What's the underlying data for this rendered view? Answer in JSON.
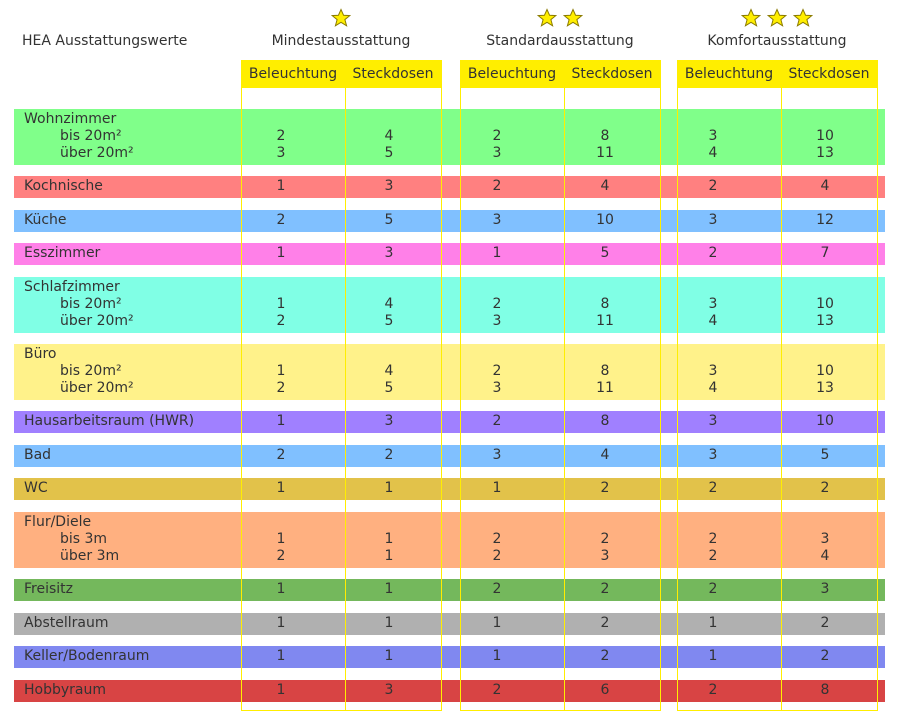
{
  "title": "HEA Ausstattungswerte",
  "tiers": [
    {
      "name": "Mindestausstattung",
      "stars": 1
    },
    {
      "name": "Standardausstattung",
      "stars": 2
    },
    {
      "name": "Komfortausstattung",
      "stars": 3
    }
  ],
  "subheaders": [
    "Beleuchtung",
    "Steckdosen"
  ],
  "colors": {
    "header_yellow": "#ffee00",
    "star_fill": "#ffee00"
  },
  "rows": [
    {
      "label": "Wohnzimmer",
      "color": "#80ff8a",
      "subrows": [
        {
          "label": "bis 20m²",
          "values": [
            "2",
            "4",
            "2",
            "8",
            "3",
            "10"
          ]
        },
        {
          "label": "über 20m²",
          "values": [
            "3",
            "5",
            "3",
            "11",
            "4",
            "13"
          ]
        }
      ]
    },
    {
      "label": "Kochnische",
      "color": "#ff8080",
      "values": [
        "1",
        "3",
        "2",
        "4",
        "2",
        "4"
      ]
    },
    {
      "label": "Küche",
      "color": "#80c0ff",
      "values": [
        "2",
        "5",
        "3",
        "10",
        "3",
        "12"
      ]
    },
    {
      "label": "Esszimmer",
      "color": "#ff80e8",
      "values": [
        "1",
        "3",
        "1",
        "5",
        "2",
        "7"
      ]
    },
    {
      "label": "Schlafzimmer",
      "color": "#80ffe5",
      "subrows": [
        {
          "label": "bis 20m²",
          "values": [
            "1",
            "4",
            "2",
            "8",
            "3",
            "10"
          ]
        },
        {
          "label": "über 20m²",
          "values": [
            "2",
            "5",
            "3",
            "11",
            "4",
            "13"
          ]
        }
      ]
    },
    {
      "label": "Büro",
      "color": "#fff28a",
      "subrows": [
        {
          "label": "bis 20m²",
          "values": [
            "1",
            "4",
            "2",
            "8",
            "3",
            "10"
          ]
        },
        {
          "label": "über 20m²",
          "values": [
            "2",
            "5",
            "3",
            "11",
            "4",
            "13"
          ]
        }
      ]
    },
    {
      "label": "Hausarbeitsraum (HWR)",
      "color": "#a080ff",
      "values": [
        "1",
        "3",
        "2",
        "8",
        "3",
        "10"
      ]
    },
    {
      "label": "Bad",
      "color": "#80c0ff",
      "values": [
        "2",
        "2",
        "3",
        "4",
        "3",
        "5"
      ]
    },
    {
      "label": "WC",
      "color": "#e2c24a",
      "values": [
        "1",
        "1",
        "1",
        "2",
        "2",
        "2"
      ]
    },
    {
      "label": "Flur/Diele",
      "color": "#ffb080",
      "subrows": [
        {
          "label": "bis 3m",
          "values": [
            "1",
            "1",
            "2",
            "2",
            "2",
            "3"
          ]
        },
        {
          "label": "über 3m",
          "values": [
            "2",
            "1",
            "2",
            "3",
            "2",
            "4"
          ]
        }
      ]
    },
    {
      "label": "Freisitz",
      "color": "#74b85c",
      "values": [
        "1",
        "1",
        "2",
        "2",
        "2",
        "3"
      ]
    },
    {
      "label": "Abstellraum",
      "color": "#b0b0b0",
      "values": [
        "1",
        "1",
        "1",
        "2",
        "1",
        "2"
      ]
    },
    {
      "label": "Keller/Bodenraum",
      "color": "#8088f0",
      "values": [
        "1",
        "1",
        "1",
        "2",
        "1",
        "2"
      ]
    },
    {
      "label": "Hobbyraum",
      "color": "#d84444",
      "values": [
        "1",
        "3",
        "2",
        "6",
        "2",
        "8"
      ]
    }
  ]
}
